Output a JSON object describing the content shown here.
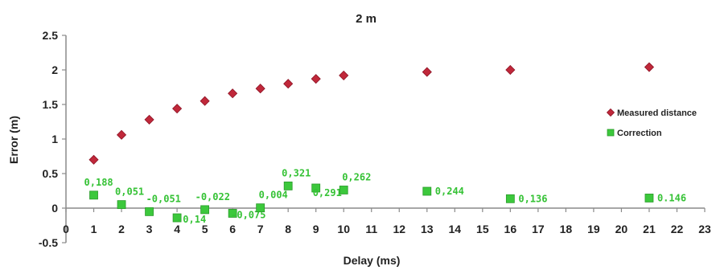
{
  "chart_data": {
    "type": "scatter",
    "title": "2 m",
    "xlabel": "Delay (ms)",
    "ylabel": "Error (m)",
    "xlim": [
      0,
      23
    ],
    "ylim": [
      -0.5,
      2.5
    ],
    "x_ticks": [
      "0",
      "1",
      "2",
      "3",
      "4",
      "5",
      "6",
      "7",
      "8",
      "9",
      "10",
      "11",
      "12",
      "13",
      "14",
      "15",
      "16",
      "17",
      "18",
      "19",
      "20",
      "21",
      "22",
      "23"
    ],
    "y_ticks": [
      "-0.5",
      "0",
      "0.5",
      "1",
      "1.5",
      "2",
      "2.5"
    ],
    "grid": false,
    "legend_position": "right",
    "series": [
      {
        "name": "Measured distance",
        "marker": "diamond",
        "color": "#c0283a",
        "x": [
          1,
          2,
          3,
          4,
          5,
          6,
          7,
          8,
          9,
          10,
          13,
          16,
          21
        ],
        "y": [
          0.7,
          1.06,
          1.28,
          1.44,
          1.55,
          1.66,
          1.73,
          1.8,
          1.87,
          1.92,
          1.97,
          2.0,
          2.04
        ]
      },
      {
        "name": "Correction",
        "marker": "square",
        "color": "#3cc83c",
        "x": [
          1,
          2,
          3,
          4,
          5,
          6,
          7,
          8,
          9,
          10,
          13,
          16,
          21
        ],
        "y": [
          0.188,
          0.051,
          -0.051,
          -0.14,
          -0.022,
          -0.075,
          0.004,
          0.321,
          0.291,
          0.262,
          0.244,
          0.136,
          0.146
        ],
        "labels": [
          "0,188",
          "0,051",
          "-0,051",
          "-0,14",
          "-0,022",
          "-0,075",
          "0,004",
          "0,321",
          "0,291",
          "0,262",
          "0,244",
          "0,136",
          "0.146"
        ]
      }
    ]
  }
}
